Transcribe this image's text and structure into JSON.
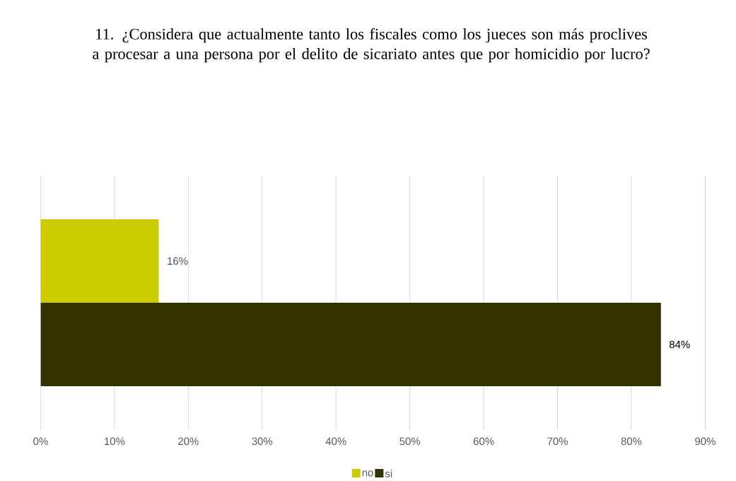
{
  "chart_data": {
    "type": "bar",
    "orientation": "horizontal",
    "title": "11. ¿Considera que actualmente tanto los fiscales como los jueces son más proclives a procesar a una persona por el delito de sicariato antes que por homicidio por lucro?",
    "categories": [
      null
    ],
    "series": [
      {
        "name": "no",
        "color": "#cccc00",
        "values": [
          16
        ],
        "value_labels": [
          "16%"
        ]
      },
      {
        "name": "si",
        "color": "#333300",
        "values": [
          84
        ],
        "value_labels": [
          "84%"
        ]
      }
    ],
    "xlim": [
      0,
      90
    ],
    "xticks": [
      {
        "value": 0,
        "label": "0%"
      },
      {
        "value": 10,
        "label": "10%"
      },
      {
        "value": 20,
        "label": "20%"
      },
      {
        "value": 30,
        "label": "30%"
      },
      {
        "value": 40,
        "label": "40%"
      },
      {
        "value": 50,
        "label": "50%"
      },
      {
        "value": 60,
        "label": "60%"
      },
      {
        "value": 70,
        "label": "70%"
      },
      {
        "value": 80,
        "label": "80%"
      },
      {
        "value": 90,
        "label": "90%"
      }
    ],
    "grid": "x",
    "legend": "bottom"
  }
}
